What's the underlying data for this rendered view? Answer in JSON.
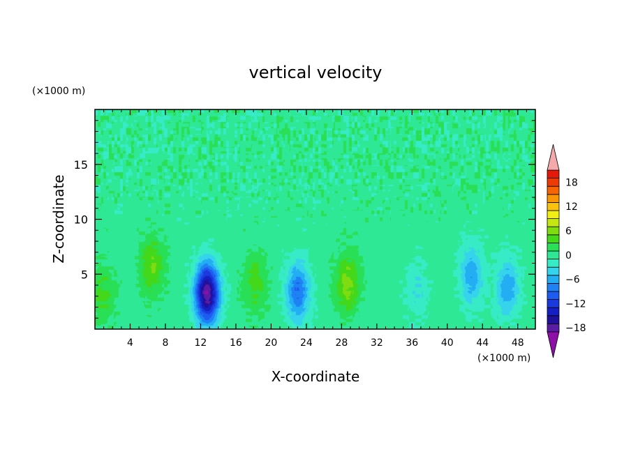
{
  "chart_data": {
    "type": "heatmap",
    "title": "vertical velocity",
    "xlabel": "X-coordinate",
    "ylabel": "Z-coordinate",
    "x_unit": "(×1000 m)",
    "y_unit": "(×1000 m)",
    "xlim": [
      0,
      50
    ],
    "ylim": [
      0,
      20
    ],
    "x_ticks": [
      4,
      8,
      12,
      16,
      20,
      24,
      28,
      32,
      36,
      40,
      44,
      48
    ],
    "y_ticks": [
      5,
      10,
      15
    ],
    "colorbar": {
      "ticks": [
        18,
        12,
        6,
        0,
        -6,
        -12,
        -18
      ],
      "range": [
        -21,
        21
      ],
      "interval": 2,
      "colors": [
        "#8e0fa8",
        "#5a1ba5",
        "#20109c",
        "#1420c4",
        "#1b3ade",
        "#1d5cf0",
        "#1f82f4",
        "#23aef4",
        "#36d4ec",
        "#37ebc6",
        "#2ee896",
        "#29df55",
        "#44d81a",
        "#7fdc10",
        "#c4e612",
        "#f2ee12",
        "#fbc20d",
        "#fb9508",
        "#f66505",
        "#ee3a05",
        "#e5190a",
        "#f4aaaa"
      ]
    },
    "features": [
      {
        "x": 0.9,
        "z": 3.2,
        "w": 3.5
      },
      {
        "x": 6.4,
        "z": 5.8,
        "w": 5.0
      },
      {
        "x": 12.7,
        "z": 3.3,
        "w": -19.0
      },
      {
        "x": 18.1,
        "z": 4.2,
        "w": 4.0
      },
      {
        "x": 23.0,
        "z": 3.5,
        "w": -9.0
      },
      {
        "x": 28.6,
        "z": 4.2,
        "w": 6.0
      },
      {
        "x": 36.5,
        "z": 3.5,
        "w": -3.0
      },
      {
        "x": 42.7,
        "z": 5.0,
        "w": -6.5
      },
      {
        "x": 46.8,
        "z": 3.8,
        "w": -6.5
      }
    ]
  }
}
